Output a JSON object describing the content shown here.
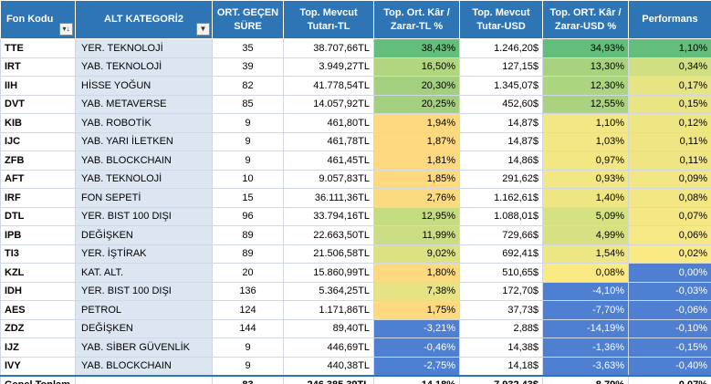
{
  "headers": {
    "fon_kodu": "Fon Kodu",
    "alt_kategori": "ALT KATEGORİ2",
    "ort_gecen_sure": "ORT. GEÇEN SÜRE",
    "top_mevcut_tl": "Top. Mevcut Tutarı-TL",
    "kar_zarar_tl": "Top. Ort. Kâr / Zarar-TL %",
    "top_mevcut_usd": "Top. Mevcut Tutar-USD",
    "kar_zarar_usd": "Top. ORT. Kâr / Zarar-USD %",
    "performans": "Performans"
  },
  "filter_icons": {
    "fon_kodu": "sort-filter-icon",
    "alt_kategori": "dropdown-filter-icon"
  },
  "rows": [
    {
      "code": "TTE",
      "kat": "YER. TEKNOLOJİ",
      "sure": "35",
      "tl": "38.707,66TL",
      "kz_tl": "38,43%",
      "usd": "1.246,20$",
      "kz_usd": "34,93%",
      "perf": "1,10%",
      "c_tl": "#63be7b",
      "c_usd": "#63be7b",
      "c_perf": "#63be7b"
    },
    {
      "code": "IRT",
      "kat": "YAB. TEKNOLOJİ",
      "sure": "39",
      "tl": "3.949,27TL",
      "kz_tl": "16,50%",
      "usd": "127,15$",
      "kz_usd": "13,30%",
      "perf": "0,34%",
      "c_tl": "#b2d680",
      "c_usd": "#a8d27f",
      "c_perf": "#cfdf82"
    },
    {
      "code": "IIH",
      "kat": "HİSSE YOĞUN",
      "sure": "82",
      "tl": "41.778,54TL",
      "kz_tl": "20,30%",
      "usd": "1.345,07$",
      "kz_usd": "12,30%",
      "perf": "0,17%",
      "c_tl": "#a2d07f",
      "c_usd": "#add47f",
      "c_perf": "#e6e483"
    },
    {
      "code": "DVT",
      "kat": "YAB. METAVERSE",
      "sure": "85",
      "tl": "14.057,92TL",
      "kz_tl": "20,25%",
      "usd": "452,60$",
      "kz_usd": "12,55%",
      "perf": "0,15%",
      "c_tl": "#a2d07f",
      "c_usd": "#abd37f",
      "c_perf": "#e9e583"
    },
    {
      "code": "KIB",
      "kat": "YAB. ROBOTİK",
      "sure": "9",
      "tl": "461,80TL",
      "kz_tl": "1,94%",
      "usd": "14,87$",
      "kz_usd": "1,10%",
      "perf": "0,12%",
      "c_tl": "#fed980",
      "c_usd": "#f2e784",
      "c_perf": "#eee683"
    },
    {
      "code": "IJC",
      "kat": "YAB. YARI İLETKEN",
      "sure": "9",
      "tl": "461,78TL",
      "kz_tl": "1,87%",
      "usd": "14,87$",
      "kz_usd": "1,03%",
      "perf": "0,11%",
      "c_tl": "#fed980",
      "c_usd": "#f2e784",
      "c_perf": "#efe683"
    },
    {
      "code": "ZFB",
      "kat": "YAB. BLOCKCHAIN",
      "sure": "9",
      "tl": "461,45TL",
      "kz_tl": "1,81%",
      "usd": "14,86$",
      "kz_usd": "0,97%",
      "perf": "0,11%",
      "c_tl": "#fed980",
      "c_usd": "#f3e784",
      "c_perf": "#efe683"
    },
    {
      "code": "AFT",
      "kat": "YAB. TEKNOLOJİ",
      "sure": "10",
      "tl": "9.057,83TL",
      "kz_tl": "1,85%",
      "usd": "291,62$",
      "kz_usd": "0,93%",
      "perf": "0,09%",
      "c_tl": "#fed980",
      "c_usd": "#f3e784",
      "c_perf": "#f2e784"
    },
    {
      "code": "IRF",
      "kat": "FON SEPETİ",
      "sure": "15",
      "tl": "36.111,36TL",
      "kz_tl": "2,76%",
      "usd": "1.162,61$",
      "kz_usd": "1,40%",
      "perf": "0,08%",
      "c_tl": "#fcda80",
      "c_usd": "#efe683",
      "c_perf": "#f3e784"
    },
    {
      "code": "DTL",
      "kat": "YER. BIST 100 DIŞI",
      "sure": "96",
      "tl": "33.794,16TL",
      "kz_tl": "12,95%",
      "usd": "1.088,01$",
      "kz_usd": "5,09%",
      "perf": "0,07%",
      "c_tl": "#c6dc81",
      "c_usd": "#d6e182",
      "c_perf": "#f5e884"
    },
    {
      "code": "IPB",
      "kat": "DEĞİŞKEN",
      "sure": "89",
      "tl": "22.663,50TL",
      "kz_tl": "11,99%",
      "usd": "729,66$",
      "kz_usd": "4,99%",
      "perf": "0,06%",
      "c_tl": "#cbdd82",
      "c_usd": "#d7e182",
      "c_perf": "#f6e884"
    },
    {
      "code": "TI3",
      "kat": "YER. İŞTİRAK",
      "sure": "89",
      "tl": "21.506,58TL",
      "kz_tl": "9,02%",
      "usd": "692,41$",
      "kz_usd": "1,54%",
      "perf": "0,02%",
      "c_tl": "#dce182",
      "c_usd": "#eee683",
      "c_perf": "#fbea84"
    },
    {
      "code": "KZL",
      "kat": "KAT. ALT.",
      "sure": "20",
      "tl": "15.860,99TL",
      "kz_tl": "1,80%",
      "usd": "510,65$",
      "kz_usd": "0,08%",
      "perf": "0,00%",
      "c_tl": "#fed980",
      "c_usd": "#fbea84",
      "c_perf": "#4f7fd0"
    },
    {
      "code": "IDH",
      "kat": "YER. BIST 100 DIŞI",
      "sure": "136",
      "tl": "5.364,25TL",
      "kz_tl": "7,38%",
      "usd": "172,70$",
      "kz_usd": "-4,10%",
      "perf": "-0,03%",
      "c_tl": "#e5e383",
      "c_usd": "#4f7fd0",
      "c_perf": "#4f7fd0"
    },
    {
      "code": "AES",
      "kat": "PETROL",
      "sure": "124",
      "tl": "1.171,86TL",
      "kz_tl": "1,75%",
      "usd": "37,73$",
      "kz_usd": "-7,70%",
      "perf": "-0,06%",
      "c_tl": "#fed980",
      "c_usd": "#4f7fd0",
      "c_perf": "#4f7fd0"
    },
    {
      "code": "ZDZ",
      "kat": "DEĞİŞKEN",
      "sure": "144",
      "tl": "89,40TL",
      "kz_tl": "-3,21%",
      "usd": "2,88$",
      "kz_usd": "-14,19%",
      "perf": "-0,10%",
      "c_tl": "#4f7fd0",
      "c_usd": "#4f7fd0",
      "c_perf": "#4f7fd0"
    },
    {
      "code": "IJZ",
      "kat": "YAB. SİBER GÜVENLİK",
      "sure": "9",
      "tl": "446,69TL",
      "kz_tl": "-0,46%",
      "usd": "14,38$",
      "kz_usd": "-1,36%",
      "perf": "-0,15%",
      "c_tl": "#4f7fd0",
      "c_usd": "#4f7fd0",
      "c_perf": "#4f7fd0"
    },
    {
      "code": "IVY",
      "kat": "YAB. BLOCKCHAIN",
      "sure": "9",
      "tl": "440,38TL",
      "kz_tl": "-2,75%",
      "usd": "14,18$",
      "kz_usd": "-3,63%",
      "perf": "-0,40%",
      "c_tl": "#4f7fd0",
      "c_usd": "#4f7fd0",
      "c_perf": "#4f7fd0"
    }
  ],
  "total": {
    "label": "Genel Toplam",
    "sure": "83",
    "tl": "246.385,39TL",
    "kz_tl": "14,18%",
    "usd": "7.932,43$",
    "kz_usd": "8,79%",
    "perf": "0,07%"
  }
}
